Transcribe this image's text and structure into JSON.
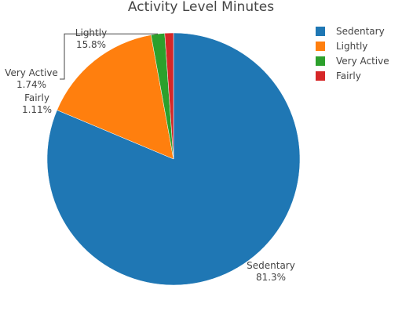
{
  "chart_data": {
    "type": "pie",
    "title": "Activity Level Minutes",
    "slices": [
      {
        "name": "Sedentary",
        "percent": 81.3,
        "percent_label": "81.3%",
        "color": "#1f77b4"
      },
      {
        "name": "Lightly",
        "percent": 15.8,
        "percent_label": "15.8%",
        "color": "#ff7f0e"
      },
      {
        "name": "Very Active",
        "percent": 1.74,
        "percent_label": "1.74%",
        "color": "#2ca02c"
      },
      {
        "name": "Fairly",
        "percent": 1.11,
        "percent_label": "1.11%",
        "color": "#d62728"
      }
    ],
    "legend": {
      "placement": "top-right",
      "items": [
        "Sedentary",
        "Lightly",
        "Very Active",
        "Fairly"
      ]
    },
    "direction": "clockwise",
    "start_angle": "12 o'clock"
  }
}
